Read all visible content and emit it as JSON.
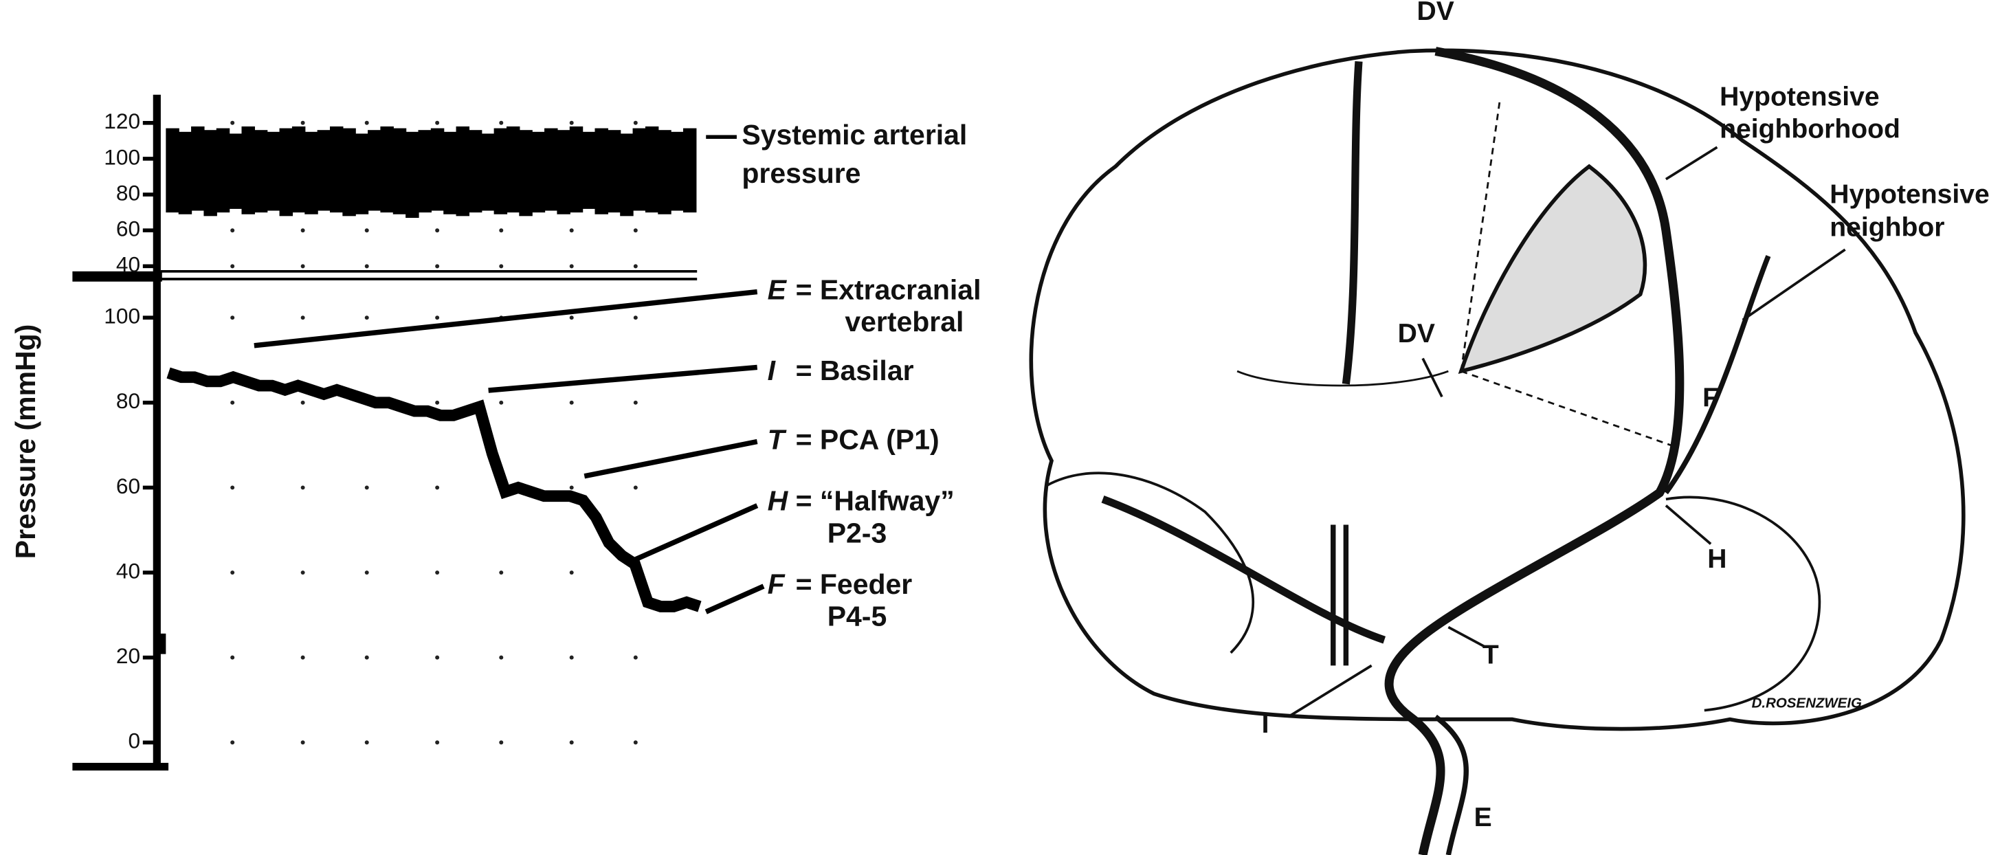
{
  "chart_data": [
    {
      "type": "band",
      "color": "#000000",
      "ylim": [
        35,
        135
      ],
      "yticks": [
        40,
        60,
        80,
        100,
        120
      ],
      "grid": "dots",
      "annotation_lines": [
        "Systemic arterial",
        "pressure"
      ],
      "low": [
        70,
        69,
        71,
        68,
        70,
        72,
        69,
        70,
        71,
        68,
        70,
        69,
        71,
        70,
        68,
        69,
        71,
        70,
        69,
        67,
        70,
        71,
        69,
        68,
        70,
        71,
        69,
        70,
        68,
        70,
        71,
        69,
        70,
        72,
        69,
        70,
        68,
        71,
        70,
        69,
        71,
        70
      ],
      "high": [
        117,
        115,
        118,
        116,
        117,
        114,
        118,
        116,
        115,
        117,
        118,
        115,
        116,
        118,
        117,
        114,
        116,
        118,
        117,
        115,
        116,
        117,
        115,
        118,
        116,
        114,
        117,
        118,
        116,
        115,
        117,
        116,
        118,
        115,
        117,
        116,
        114,
        117,
        118,
        116,
        115,
        117
      ]
    },
    {
      "type": "line",
      "ylabel": "Pressure (mmHg)",
      "color": "#000000",
      "ylim": [
        -6,
        110
      ],
      "yticks": [
        0,
        20,
        40,
        60,
        80,
        100
      ],
      "grid": "dots",
      "values": [
        87,
        86,
        86,
        85,
        85,
        86,
        85,
        84,
        84,
        83,
        84,
        83,
        82,
        83,
        82,
        81,
        80,
        80,
        79,
        78,
        78,
        77,
        77,
        78,
        79,
        68,
        59,
        60,
        59,
        58,
        58,
        58,
        57,
        53,
        47,
        44,
        42,
        33,
        32,
        32,
        33,
        32
      ],
      "annotations": [
        {
          "letter": "E",
          "text": "= Extracranial",
          "subtext": "vertebral"
        },
        {
          "letter": "I",
          "text": "= Basilar"
        },
        {
          "letter": "T",
          "text": "= PCA (P1)"
        },
        {
          "letter": "H",
          "text": "= “Halfway”",
          "subtext": "P2-3"
        },
        {
          "letter": "F",
          "text": "= Feeder",
          "subtext": "P4-5"
        }
      ]
    }
  ],
  "illustration": {
    "labels": [
      "DV",
      "Hypotensive",
      "neighborhood",
      "Hypotensive",
      "neighbor",
      "DV",
      "F",
      "H",
      "T",
      "I",
      "E",
      "D.ROSENZWEIG"
    ]
  }
}
